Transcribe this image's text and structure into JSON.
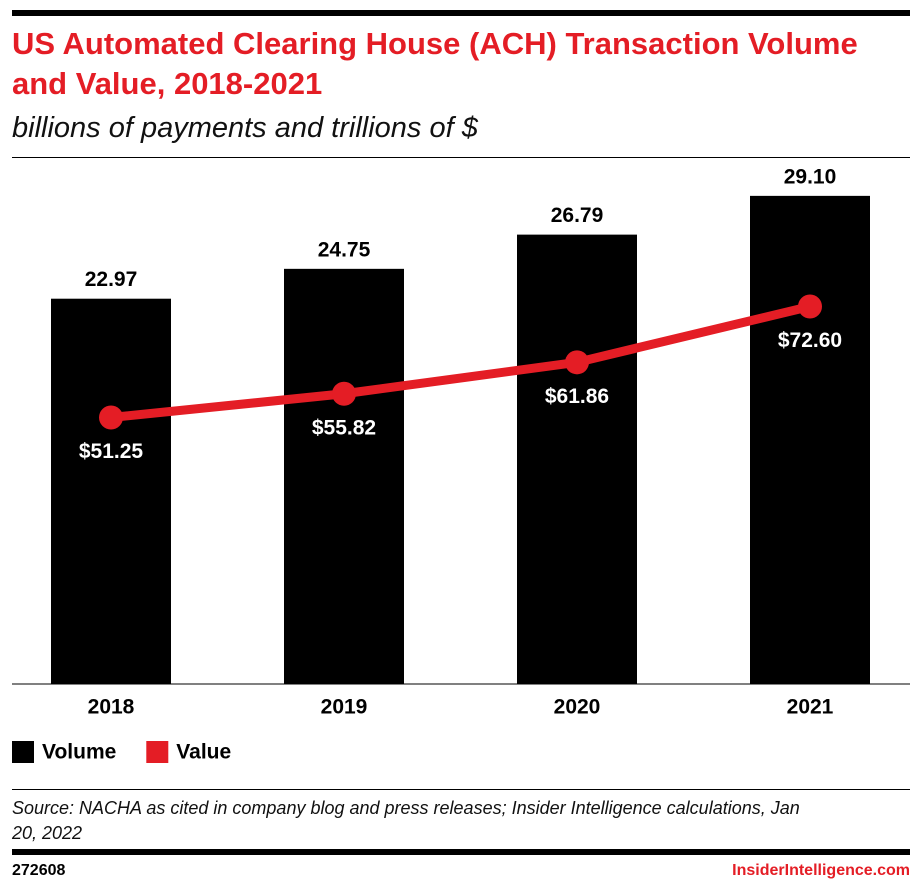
{
  "chart_data": {
    "type": "bar-line",
    "title": "US Automated Clearing House (ACH) Transaction Volume and Value, 2018-2021",
    "subtitle": "billions of payments and trillions of $",
    "categories": [
      "2018",
      "2019",
      "2020",
      "2021"
    ],
    "series": [
      {
        "name": "Volume",
        "color": "#000000",
        "type": "bar",
        "values": [
          22.97,
          24.75,
          26.79,
          29.1
        ],
        "value_labels": [
          "22.97",
          "24.75",
          "26.79",
          "29.10"
        ]
      },
      {
        "name": "Value",
        "color": "#e41d25",
        "type": "line",
        "axis": "y2",
        "values": [
          51.25,
          55.82,
          61.86,
          72.6
        ],
        "value_labels": [
          "$51.25",
          "$55.82",
          "$61.86",
          "$72.60"
        ]
      }
    ],
    "ylim": [
      0,
      31
    ],
    "y2lim": [
      0,
      100
    ],
    "legend": "bottom-left",
    "source": "Source: NACHA as cited in company blog and press releases; Insider Intelligence calculations, Jan 20, 2022",
    "chart_id": "272608",
    "brand": "InsiderIntelligence.com"
  }
}
